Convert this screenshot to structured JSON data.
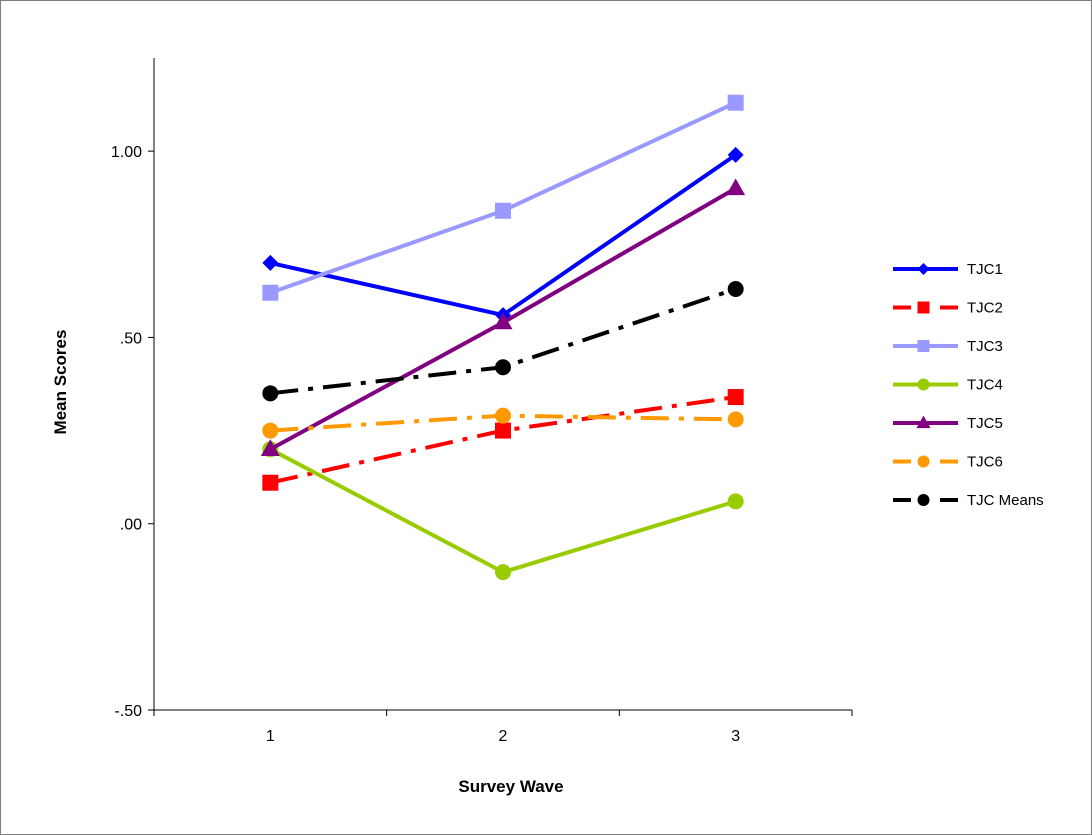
{
  "chart_data": {
    "type": "line",
    "title": "",
    "xlabel": "Survey Wave",
    "ylabel": "Mean Scores",
    "x": [
      1,
      2,
      3
    ],
    "x_tick_labels": [
      "1",
      "2",
      "3"
    ],
    "ylim": [
      -0.5,
      1.25
    ],
    "y_ticks": [
      -0.5,
      0,
      0.5,
      1
    ],
    "y_tick_labels": [
      "-.50",
      ".00",
      ".50",
      "1.00"
    ],
    "grid": false,
    "legend_position": "right",
    "series": [
      {
        "name": "TJC1",
        "values": [
          0.7,
          0.56,
          0.99
        ],
        "color": "#0000ff",
        "marker": "diamond",
        "dash": "solid"
      },
      {
        "name": "TJC2",
        "values": [
          0.11,
          0.25,
          0.34
        ],
        "color": "#ff0000",
        "marker": "square",
        "dash": "dashdot"
      },
      {
        "name": "TJC3",
        "values": [
          0.62,
          0.84,
          1.13
        ],
        "color": "#9999ff",
        "marker": "square",
        "dash": "solid"
      },
      {
        "name": "TJC4",
        "values": [
          0.2,
          -0.13,
          0.06
        ],
        "color": "#99cc00",
        "marker": "circle",
        "dash": "solid"
      },
      {
        "name": "TJC5",
        "values": [
          0.2,
          0.54,
          0.9
        ],
        "color": "#800080",
        "marker": "triangle",
        "dash": "solid"
      },
      {
        "name": "TJC6",
        "values": [
          0.25,
          0.29,
          0.28
        ],
        "color": "#ff9900",
        "marker": "circle",
        "dash": "dashdot"
      },
      {
        "name": "TJC Means",
        "values": [
          0.35,
          0.42,
          0.63
        ],
        "color": "#000000",
        "marker": "circle",
        "dash": "dashdot"
      }
    ]
  }
}
